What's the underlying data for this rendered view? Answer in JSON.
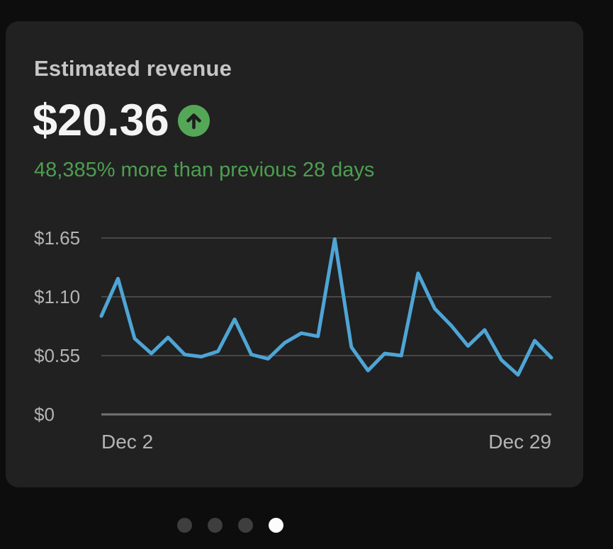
{
  "card": {
    "title": "Estimated revenue",
    "value": "$20.36",
    "trend_icon": "arrow-up-circle",
    "change_text": "48,385% more than previous 28 days"
  },
  "chart_data": {
    "type": "line",
    "title": "Estimated revenue",
    "x_first_label": "Dec 2",
    "x_last_label": "Dec 29",
    "num_points": 28,
    "values": [
      0.92,
      1.27,
      0.71,
      0.57,
      0.72,
      0.56,
      0.54,
      0.59,
      0.89,
      0.56,
      0.52,
      0.67,
      0.76,
      0.73,
      1.64,
      0.63,
      0.41,
      0.57,
      0.55,
      1.32,
      0.99,
      0.83,
      0.64,
      0.79,
      0.51,
      0.37,
      0.69,
      0.53
    ],
    "y_ticks": [
      {
        "label": "$1.65",
        "value": 1.65
      },
      {
        "label": "$1.10",
        "value": 1.1
      },
      {
        "label": "$0.55",
        "value": 0.55
      },
      {
        "label": "$0",
        "value": 0
      }
    ],
    "ylim": [
      0,
      1.65
    ],
    "grid": true,
    "legend": false,
    "line_color": "#4ea5d5",
    "gridline_color": "#484848",
    "zero_line_color": "#747474"
  },
  "pagination": {
    "dots": [
      "inactive",
      "inactive",
      "inactive",
      "active"
    ]
  },
  "colors": {
    "page_bg": "#0d0d0d",
    "card_bg": "#212121",
    "title_text": "#c6c6c6",
    "value_text": "#f4f4f4",
    "positive_green": "#4d9e50",
    "badge_green": "#55a758",
    "axis_text": "#b4b4b4",
    "dot_inactive": "#3e3e3e",
    "dot_active": "#fcfcfc"
  }
}
